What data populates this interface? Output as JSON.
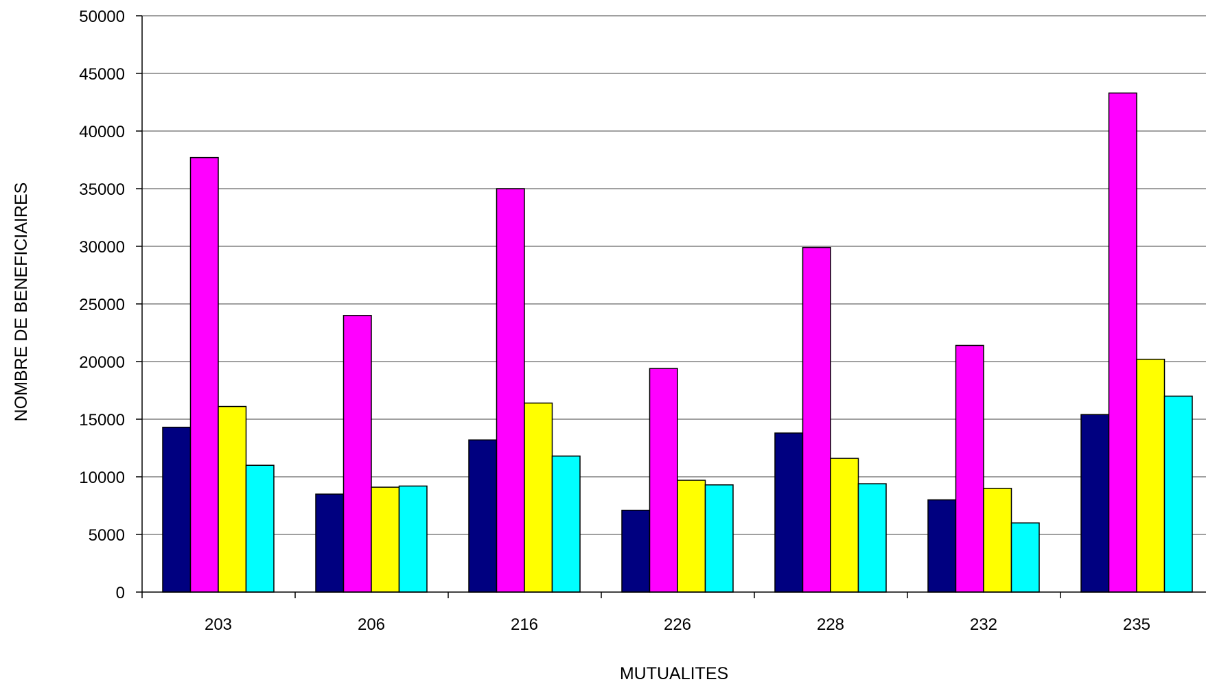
{
  "chart_data": {
    "type": "bar",
    "title": "",
    "xlabel": "MUTUALITES",
    "ylabel": "NOMBRE DE BENEFICIAIRES",
    "categories": [
      "203",
      "206",
      "216",
      "226",
      "228",
      "232",
      "235"
    ],
    "ylim": [
      0,
      50000
    ],
    "yticks": [
      0,
      5000,
      10000,
      15000,
      20000,
      25000,
      30000,
      35000,
      40000,
      45000,
      50000
    ],
    "grid": true,
    "legend": "none visible",
    "series": [
      {
        "color": "#000080",
        "values": [
          14300,
          8500,
          13200,
          7100,
          13800,
          8000,
          15400
        ]
      },
      {
        "color": "#ff00ff",
        "values": [
          37700,
          24000,
          35000,
          19400,
          29900,
          21400,
          43300
        ]
      },
      {
        "color": "#ffff00",
        "values": [
          16100,
          9100,
          16400,
          9700,
          11600,
          9000,
          20200
        ]
      },
      {
        "color": "#00ffff",
        "values": [
          11000,
          9200,
          11800,
          9300,
          9400,
          6000,
          17000
        ]
      }
    ]
  }
}
